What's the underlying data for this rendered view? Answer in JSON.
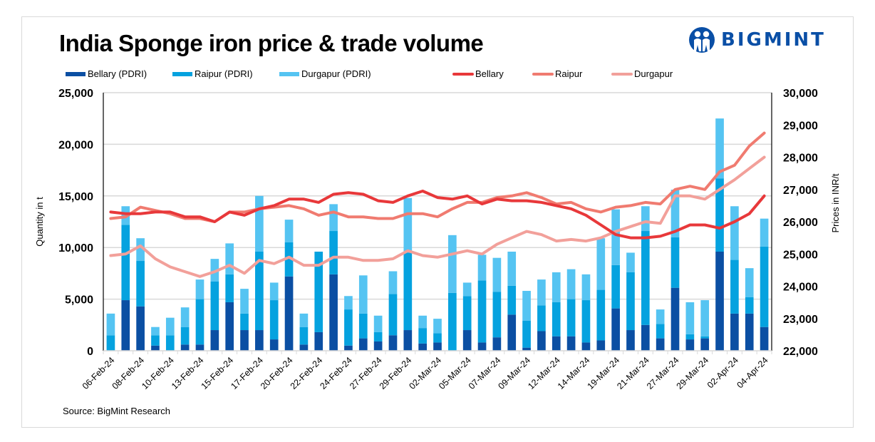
{
  "header": {
    "title": "India Sponge iron price & trade volume",
    "logo_text": "BIGMINT",
    "logo_color": "#0a4fa6"
  },
  "source": "Source: BigMint Research",
  "legend": [
    {
      "label": "Bellary (PDRI)",
      "type": "bar",
      "color": "#0b4fa3"
    },
    {
      "label": "Raipur (PDRI)",
      "type": "bar",
      "color": "#05a2df"
    },
    {
      "label": "Durgapur (PDRI)",
      "type": "bar",
      "color": "#55c4f2"
    },
    {
      "label": "Bellary",
      "type": "line",
      "color": "#e8383a"
    },
    {
      "label": "Raipur",
      "type": "line",
      "color": "#f07b70"
    },
    {
      "label": "Durgapur",
      "type": "line",
      "color": "#f2a09a"
    }
  ],
  "chart_data": {
    "type": "bar+line",
    "title": "India Sponge iron price & trade volume",
    "ylabel": "Quantity in t",
    "y2label": "Prices in INR/t",
    "ylim": [
      0,
      25000
    ],
    "y2lim": [
      22000,
      30000
    ],
    "yticks": [
      "0",
      "5,000",
      "10,000",
      "15,000",
      "20,000",
      "25,000"
    ],
    "y2ticks": [
      "22,000",
      "23,000",
      "24,000",
      "25,000",
      "26,000",
      "27,000",
      "28,000",
      "29,000",
      "30,000"
    ],
    "grid": true,
    "legend_position": "top",
    "categories": [
      "06-Feb-24",
      "",
      "08-Feb-24",
      "",
      "10-Feb-24",
      "",
      "13-Feb-24",
      "",
      "15-Feb-24",
      "",
      "17-Feb-24",
      "",
      "20-Feb-24",
      "",
      "22-Feb-24",
      "",
      "24-Feb-24",
      "",
      "27-Feb-24",
      "",
      "29-Feb-24",
      "",
      "02-Mar-24",
      "",
      "05-Mar-24",
      "",
      "07-Mar-24",
      "",
      "09-Mar-24",
      "",
      "12-Mar-24",
      "",
      "14-Mar-24",
      "",
      "19-Mar-24",
      "",
      "21-Mar-24",
      "",
      "27-Mar-24",
      "",
      "29-Mar-24",
      "",
      "02-Apr-24",
      "",
      "04-Apr-24"
    ],
    "bar_series": [
      {
        "name": "Bellary (PDRI)",
        "values": [
          0,
          4900,
          4300,
          500,
          0,
          600,
          600,
          2000,
          4700,
          2000,
          2000,
          1100,
          7200,
          600,
          1800,
          7400,
          500,
          1200,
          900,
          1500,
          2000,
          700,
          800,
          0,
          2000,
          800,
          1300,
          3500,
          300,
          1900,
          1400,
          1400,
          800,
          1000,
          4100,
          2000,
          2500,
          1200,
          6100,
          1100,
          1200,
          9600,
          3600,
          3600,
          2300
        ]
      },
      {
        "name": "Raipur (PDRI)",
        "values": [
          1500,
          7300,
          4400,
          1000,
          1500,
          1700,
          4400,
          4700,
          2700,
          1600,
          7600,
          3800,
          3300,
          1700,
          7800,
          4200,
          3500,
          2400,
          900,
          4000,
          7500,
          1500,
          900,
          5600,
          3300,
          6000,
          4400,
          2800,
          2600,
          2500,
          3300,
          3600,
          4100,
          4900,
          4200,
          5600,
          9100,
          1400,
          4900,
          500,
          200,
          7100,
          5200,
          1600,
          7800
        ]
      },
      {
        "name": "Durgapur (PDRI)",
        "values": [
          2100,
          1800,
          2200,
          800,
          1700,
          1900,
          1900,
          2200,
          3000,
          2400,
          5400,
          1700,
          2200,
          1300,
          0,
          2600,
          1300,
          3700,
          1600,
          2200,
          5300,
          1200,
          1400,
          5600,
          1300,
          2500,
          3300,
          3300,
          2900,
          2500,
          2900,
          2900,
          2500,
          5000,
          5400,
          1900,
          2400,
          1400,
          4600,
          3100,
          3500,
          5800,
          5200,
          2800,
          2700
        ]
      }
    ],
    "line_series": [
      {
        "name": "Bellary",
        "values": [
          26300,
          26250,
          26250,
          26300,
          26300,
          26150,
          26150,
          26000,
          26300,
          26200,
          26400,
          26500,
          26700,
          26700,
          26600,
          26850,
          26900,
          26850,
          26650,
          26600,
          26800,
          26950,
          26750,
          26700,
          26800,
          26550,
          26700,
          26650,
          26650,
          26600,
          26500,
          26400,
          26200,
          25900,
          25600,
          25500,
          25500,
          25550,
          25700,
          25900,
          25900,
          25800,
          26000,
          26250,
          26800
        ]
      },
      {
        "name": "Raipur",
        "values": [
          26100,
          26150,
          26450,
          26350,
          26250,
          26100,
          26100,
          26000,
          26300,
          26300,
          26400,
          26450,
          26500,
          26400,
          26200,
          26300,
          26150,
          26150,
          26100,
          26100,
          26250,
          26250,
          26150,
          26400,
          26600,
          26600,
          26750,
          26800,
          26900,
          26750,
          26550,
          26600,
          26400,
          26300,
          26450,
          26500,
          26600,
          26550,
          27000,
          27100,
          27000,
          27550,
          27750,
          28350,
          28750
        ]
      },
      {
        "name": "Durgapur",
        "values": [
          24950,
          25000,
          25250,
          24850,
          24600,
          24450,
          24300,
          24450,
          24650,
          24400,
          24800,
          24700,
          24900,
          24650,
          24650,
          24900,
          24900,
          24800,
          24800,
          24850,
          25100,
          24950,
          24900,
          25000,
          25100,
          25000,
          25300,
          25500,
          25700,
          25600,
          25400,
          25450,
          25400,
          25500,
          25700,
          25850,
          26000,
          25950,
          26800,
          26800,
          26700,
          27000,
          27300,
          27650,
          28000
        ]
      }
    ]
  }
}
